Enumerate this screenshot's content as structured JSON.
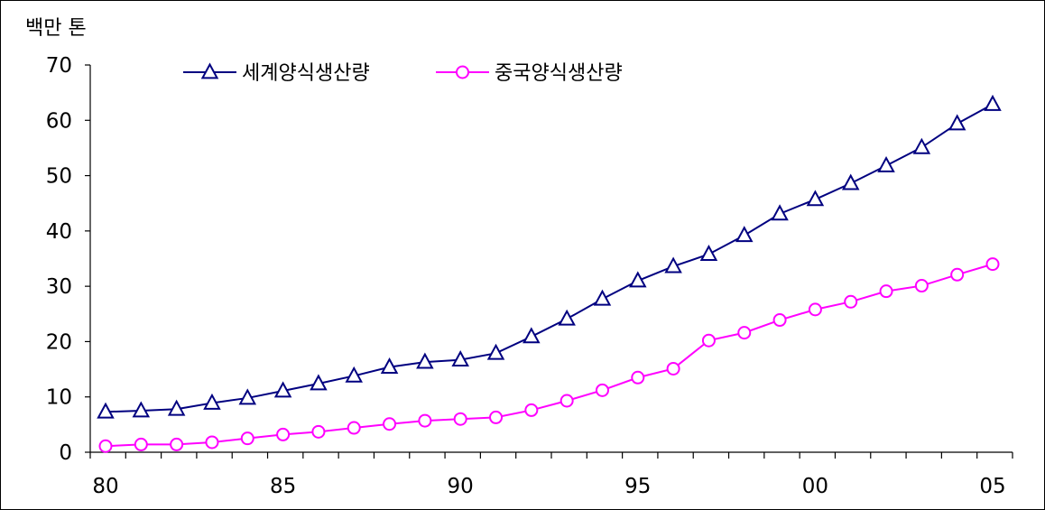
{
  "chart_data": {
    "type": "line",
    "unit_label": "백만 톤",
    "x": [
      "80",
      "81",
      "82",
      "83",
      "84",
      "85",
      "86",
      "87",
      "88",
      "89",
      "90",
      "91",
      "92",
      "93",
      "94",
      "95",
      "96",
      "97",
      "98",
      "99",
      "00",
      "01",
      "02",
      "03",
      "04",
      "05"
    ],
    "x_tick_labels": [
      "80",
      "85",
      "90",
      "95",
      "00",
      "05"
    ],
    "y_tick_labels": [
      "0",
      "10",
      "20",
      "30",
      "40",
      "50",
      "60",
      "70"
    ],
    "ylim": [
      0,
      70
    ],
    "legend_position": "top-left",
    "series": [
      {
        "name": "세계양식생산량",
        "color": "#000080",
        "marker": "triangle",
        "values": [
          7.3,
          7.5,
          7.8,
          8.9,
          9.8,
          11.1,
          12.4,
          13.8,
          15.4,
          16.3,
          16.7,
          17.9,
          20.9,
          24.1,
          27.7,
          31.0,
          33.6,
          35.8,
          39.2,
          43.1,
          45.7,
          48.6,
          51.8,
          55.1,
          59.4,
          62.9
        ]
      },
      {
        "name": "중국양식생산량",
        "color": "#ff00ff",
        "marker": "circle",
        "values": [
          1.1,
          1.4,
          1.4,
          1.8,
          2.5,
          3.2,
          3.7,
          4.4,
          5.1,
          5.7,
          6.0,
          6.3,
          7.6,
          9.3,
          11.2,
          13.5,
          15.1,
          20.2,
          21.6,
          23.9,
          25.8,
          27.2,
          29.1,
          30.1,
          32.1,
          34.0
        ]
      }
    ]
  }
}
